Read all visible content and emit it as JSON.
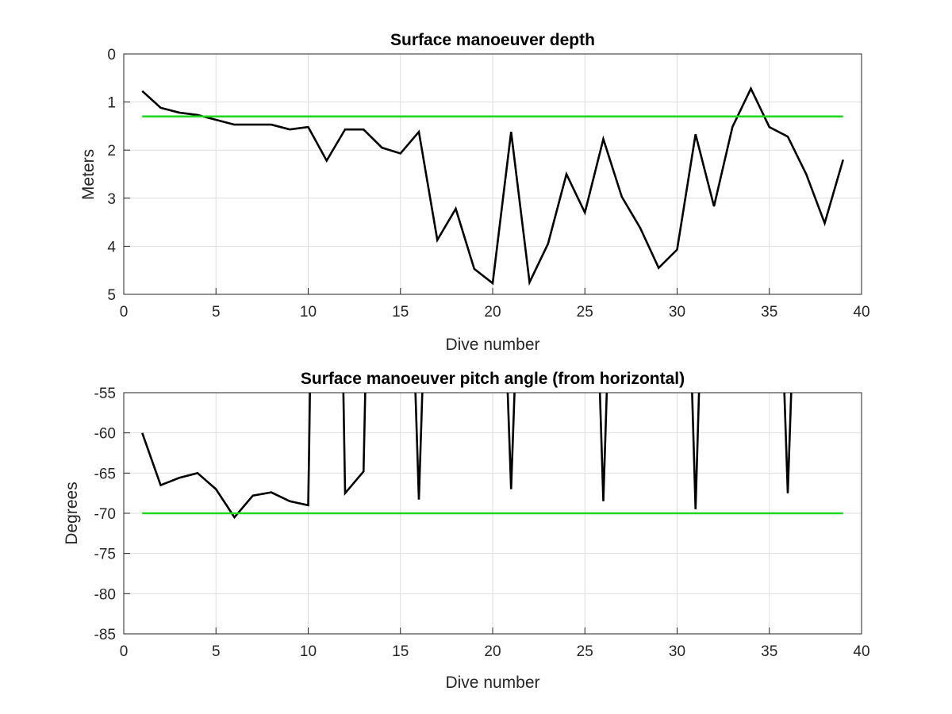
{
  "chart_data": [
    {
      "type": "line",
      "title": "Surface manoeuver depth",
      "xlabel": "Dive number",
      "ylabel": "Meters",
      "xlim": [
        0,
        40
      ],
      "ylim": [
        0,
        5
      ],
      "y_reversed": true,
      "grid": true,
      "xticks": [
        "0",
        "5",
        "10",
        "15",
        "20",
        "25",
        "30",
        "35",
        "40"
      ],
      "yticks": [
        "0",
        "1",
        "2",
        "3",
        "4",
        "5"
      ],
      "x": [
        1,
        2,
        3,
        4,
        5,
        6,
        7,
        8,
        9,
        10,
        11,
        12,
        13,
        14,
        15,
        16,
        17,
        18,
        19,
        20,
        21,
        22,
        23,
        24,
        25,
        26,
        27,
        28,
        29,
        30,
        31,
        32,
        33,
        34,
        35,
        36,
        37,
        38,
        39
      ],
      "series": [
        {
          "color": "#000000",
          "values": [
            0.77,
            1.12,
            1.22,
            1.27,
            1.37,
            1.47,
            1.47,
            1.47,
            1.57,
            1.52,
            2.22,
            1.57,
            1.57,
            1.95,
            2.07,
            1.62,
            3.87,
            3.22,
            4.47,
            4.77,
            1.62,
            4.75,
            3.95,
            2.5,
            3.3,
            1.77,
            2.97,
            3.62,
            4.45,
            4.07,
            1.67,
            3.17,
            1.52,
            0.72,
            1.52,
            1.72,
            2.5,
            3.52,
            2.2
          ]
        },
        {
          "color": "#1ed81e",
          "values": [
            1.3,
            1.3
          ],
          "x": [
            1,
            39
          ]
        }
      ]
    },
    {
      "type": "line",
      "title": "Surface manoeuver pitch angle (from horizontal)",
      "xlabel": "Dive number",
      "ylabel": "Degrees",
      "xlim": [
        0,
        40
      ],
      "ylim": [
        -85,
        -55
      ],
      "grid": true,
      "xticks": [
        "0",
        "5",
        "10",
        "15",
        "20",
        "25",
        "30",
        "35",
        "40"
      ],
      "yticks": [
        "-55",
        "-60",
        "-65",
        "-70",
        "-75",
        "-80",
        "-85"
      ],
      "series": [
        {
          "color": "#000000",
          "x": [
            1,
            2,
            3,
            4,
            5,
            6,
            7,
            8,
            9,
            10,
            10.05,
            10.1,
            11.9,
            12,
            13,
            13.1,
            15.8,
            16,
            16.2,
            20.8,
            21,
            21.2,
            25.8,
            26,
            26.2,
            30.8,
            31,
            31.2,
            35.8,
            36,
            36.2
          ],
          "values": [
            -60,
            -66.5,
            -65.6,
            -65,
            -67,
            -70.5,
            -67.8,
            -67.4,
            -68.5,
            -69,
            -62,
            -54,
            -54,
            -67.5,
            -64.8,
            -54,
            -54,
            -68.3,
            -54,
            -54,
            -67,
            -54,
            -54,
            -68.5,
            -54,
            -54,
            -69.5,
            -54,
            -54,
            -67.5,
            -54
          ]
        },
        {
          "color": "#1ed81e",
          "x": [
            1,
            39
          ],
          "values": [
            -70,
            -70
          ]
        }
      ]
    }
  ]
}
